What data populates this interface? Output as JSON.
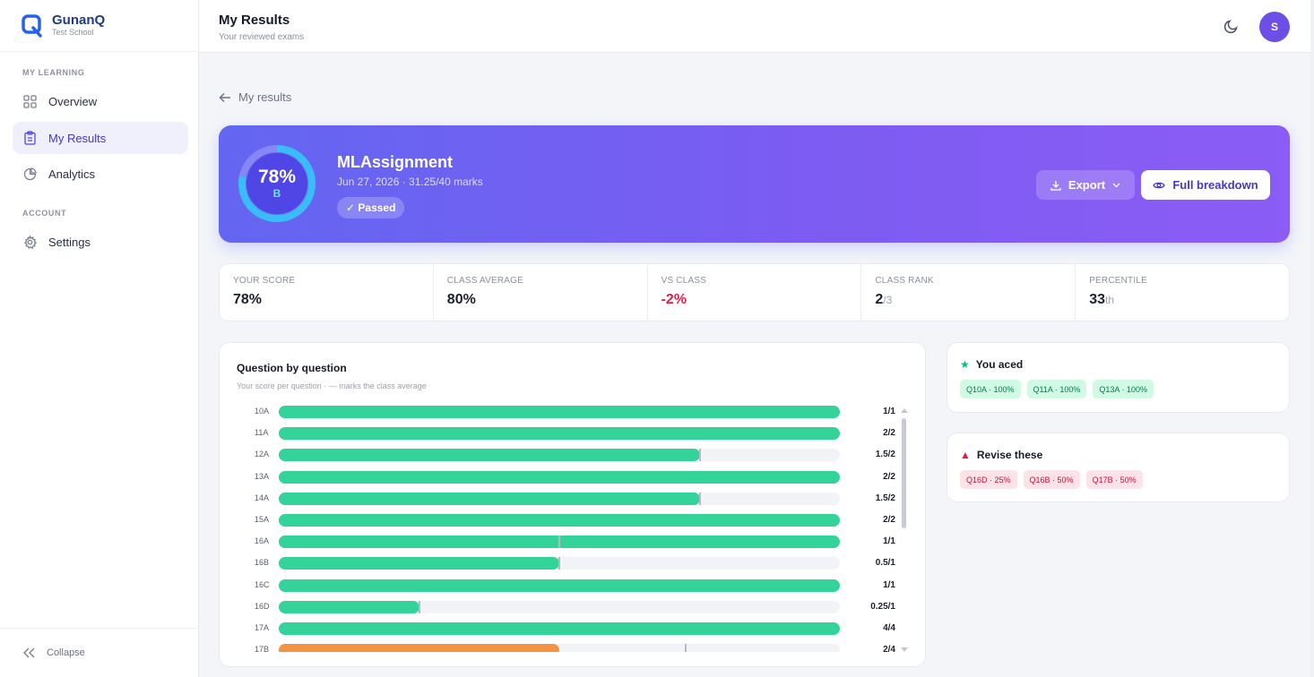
{
  "brand": {
    "name": "GunanQ",
    "subtitle": "Test School"
  },
  "sidebar": {
    "section_learning": "MY LEARNING",
    "items": [
      {
        "label": "Overview",
        "icon": "grid-icon"
      },
      {
        "label": "My Results",
        "icon": "clipboard-icon",
        "active": true
      },
      {
        "label": "Analytics",
        "icon": "pie-chart-icon"
      }
    ],
    "section_account": "ACCOUNT",
    "account_items": [
      {
        "label": "Settings",
        "icon": "gear-icon"
      }
    ],
    "collapse_label": "Collapse"
  },
  "header": {
    "title": "My Results",
    "subtitle": "Your reviewed exams",
    "avatar_initial": "S"
  },
  "back_link": "My results",
  "hero": {
    "score_pct": "78%",
    "score_fraction": 0.78,
    "grade": "B",
    "exam_name": "MLAssignment",
    "meta": "Jun 27, 2026 · 31.25/40 marks",
    "status": "✓ Passed",
    "export_label": "Export",
    "full_breakdown_label": "Full breakdown",
    "colors": {
      "gradient_start": "#6366f1",
      "gradient_end": "#8b5cf6",
      "ring": "#38bdf8"
    }
  },
  "stats": [
    {
      "label": "YOUR SCORE",
      "value": "78%",
      "suffix": ""
    },
    {
      "label": "CLASS AVERAGE",
      "value": "80%",
      "suffix": ""
    },
    {
      "label": "VS CLASS",
      "value": "-2%",
      "suffix": "",
      "negative": true
    },
    {
      "label": "CLASS RANK",
      "value": "2",
      "suffix": "/3"
    },
    {
      "label": "PERCENTILE",
      "value": "33",
      "suffix": "th"
    }
  ],
  "questions": {
    "title": "Question by question",
    "subtitle": "Your score per question · — marks the class average",
    "rows": [
      {
        "label": "10A",
        "score": "1/1",
        "fraction": 1.0,
        "class_avg": 1.0
      },
      {
        "label": "11A",
        "score": "2/2",
        "fraction": 1.0,
        "class_avg": 1.0
      },
      {
        "label": "12A",
        "score": "1.5/2",
        "fraction": 0.75,
        "class_avg": 0.75
      },
      {
        "label": "13A",
        "score": "2/2",
        "fraction": 1.0,
        "class_avg": 1.0
      },
      {
        "label": "14A",
        "score": "1.5/2",
        "fraction": 0.75,
        "class_avg": 0.75
      },
      {
        "label": "15A",
        "score": "2/2",
        "fraction": 1.0,
        "class_avg": 1.0
      },
      {
        "label": "16A",
        "score": "1/1",
        "fraction": 1.0,
        "class_avg": 0.5
      },
      {
        "label": "16B",
        "score": "0.5/1",
        "fraction": 0.5,
        "class_avg": 0.5
      },
      {
        "label": "16C",
        "score": "1/1",
        "fraction": 1.0,
        "class_avg": 1.0
      },
      {
        "label": "16D",
        "score": "0.25/1",
        "fraction": 0.25,
        "class_avg": 0.25
      },
      {
        "label": "17A",
        "score": "4/4",
        "fraction": 1.0,
        "class_avg": 1.0
      },
      {
        "label": "17B",
        "score": "2/4",
        "fraction": 0.5,
        "class_avg": 0.725
      }
    ],
    "colors": {
      "good": "#34d399",
      "low": "#f59340"
    }
  },
  "aced": {
    "title": "You aced",
    "chips": [
      "Q10A · 100%",
      "Q11A · 100%",
      "Q13A · 100%"
    ]
  },
  "revise": {
    "title": "Revise these",
    "chips": [
      "Q16D · 25%",
      "Q16B · 50%",
      "Q17B · 50%"
    ]
  }
}
